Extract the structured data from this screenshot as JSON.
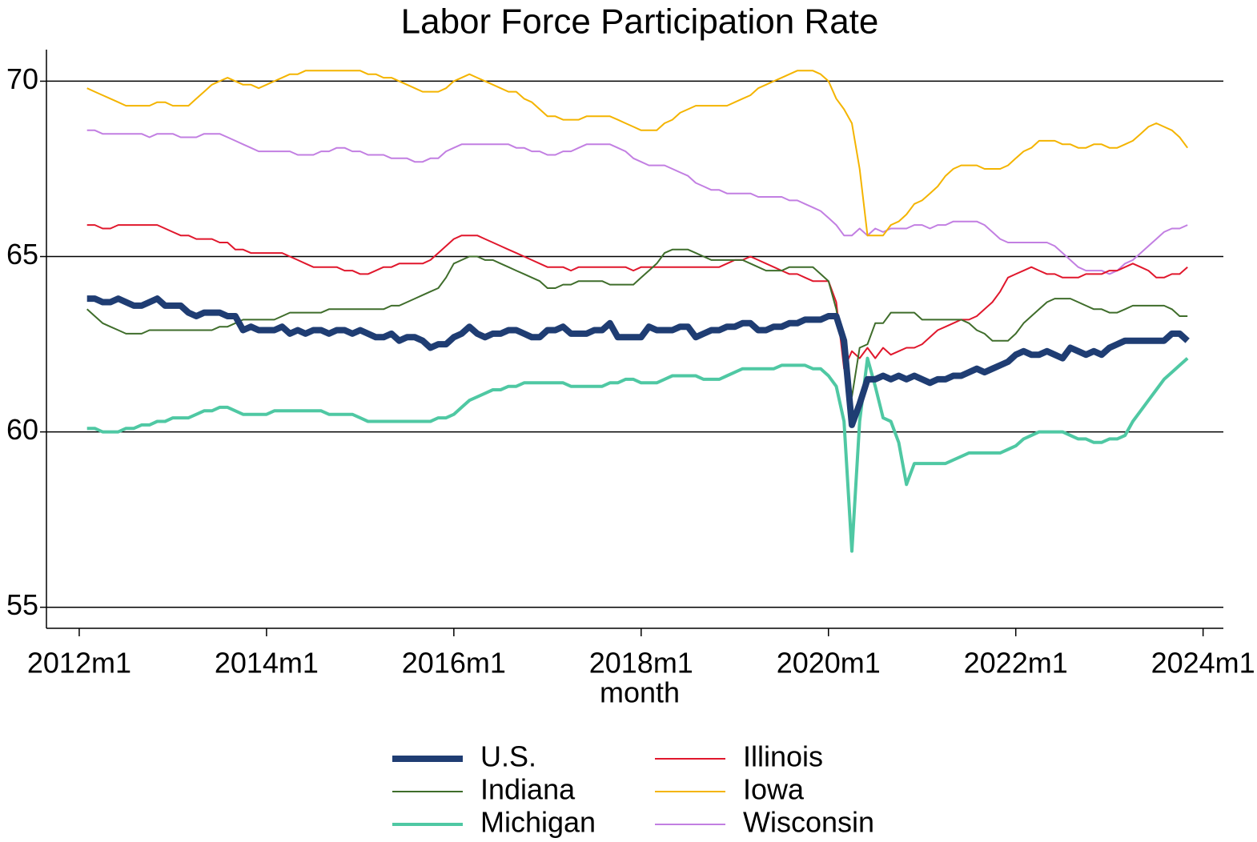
{
  "chart_data": {
    "type": "line",
    "title": "Labor Force Participation Rate",
    "x_label": "month",
    "x": [
      625,
      626,
      627,
      628,
      629,
      630,
      631,
      632,
      633,
      634,
      635,
      636,
      637,
      638,
      639,
      640,
      641,
      642,
      643,
      644,
      645,
      646,
      647,
      648,
      649,
      650,
      651,
      652,
      653,
      654,
      655,
      656,
      657,
      658,
      659,
      660,
      661,
      662,
      663,
      664,
      665,
      666,
      667,
      668,
      669,
      670,
      671,
      672,
      673,
      674,
      675,
      676,
      677,
      678,
      679,
      680,
      681,
      682,
      683,
      684,
      685,
      686,
      687,
      688,
      689,
      690,
      691,
      692,
      693,
      694,
      695,
      696,
      697,
      698,
      699,
      700,
      701,
      702,
      703,
      704,
      705,
      706,
      707,
      708,
      709,
      710,
      711,
      712,
      713,
      714,
      715,
      716,
      717,
      718,
      719,
      720,
      721,
      722,
      723,
      724,
      725,
      726,
      727,
      728,
      729,
      730,
      731,
      732,
      733,
      734,
      735,
      736,
      737,
      738,
      739,
      740,
      741,
      742,
      743,
      744,
      745,
      746,
      747,
      748,
      749,
      750,
      751,
      752,
      753,
      754,
      755,
      756,
      757,
      758,
      759,
      760,
      761,
      762,
      763,
      764,
      765,
      766
    ],
    "xlim": [
      619.8,
      770.6
    ],
    "xticks": [
      {
        "value": 624,
        "label": "2012m1"
      },
      {
        "value": 648,
        "label": "2014m1"
      },
      {
        "value": 672,
        "label": "2016m1"
      },
      {
        "value": 696,
        "label": "2018m1"
      },
      {
        "value": 720,
        "label": "2020m1"
      },
      {
        "value": 744,
        "label": "2022m1"
      },
      {
        "value": 768,
        "label": "2024m1"
      }
    ],
    "ylim": [
      54.4,
      70.9
    ],
    "yticks": [
      55,
      60,
      65,
      70
    ],
    "grid": true,
    "series": [
      {
        "name": "U.S.",
        "color": "#1f3d73",
        "values": [
          63.8,
          63.8,
          63.7,
          63.7,
          63.8,
          63.7,
          63.6,
          63.6,
          63.7,
          63.8,
          63.6,
          63.6,
          63.6,
          63.4,
          63.3,
          63.4,
          63.4,
          63.4,
          63.3,
          63.3,
          62.9,
          63.0,
          62.9,
          62.9,
          62.9,
          63.0,
          62.8,
          62.9,
          62.8,
          62.9,
          62.9,
          62.8,
          62.9,
          62.9,
          62.8,
          62.9,
          62.8,
          62.7,
          62.7,
          62.8,
          62.6,
          62.7,
          62.7,
          62.6,
          62.4,
          62.5,
          62.5,
          62.7,
          62.8,
          63.0,
          62.8,
          62.7,
          62.8,
          62.8,
          62.9,
          62.9,
          62.8,
          62.7,
          62.7,
          62.9,
          62.9,
          63.0,
          62.8,
          62.8,
          62.8,
          62.9,
          62.9,
          63.1,
          62.7,
          62.7,
          62.7,
          62.7,
          63.0,
          62.9,
          62.9,
          62.9,
          63.0,
          63.0,
          62.7,
          62.8,
          62.9,
          62.9,
          63.0,
          63.0,
          63.1,
          63.1,
          62.9,
          62.9,
          63.0,
          63.0,
          63.1,
          63.1,
          63.2,
          63.2,
          63.2,
          63.3,
          63.3,
          62.6,
          60.2,
          60.8,
          61.5,
          61.5,
          61.6,
          61.5,
          61.6,
          61.5,
          61.6,
          61.5,
          61.4,
          61.5,
          61.5,
          61.6,
          61.6,
          61.7,
          61.8,
          61.7,
          61.8,
          61.9,
          62.0,
          62.2,
          62.3,
          62.2,
          62.2,
          62.3,
          62.2,
          62.1,
          62.4,
          62.3,
          62.2,
          62.3,
          62.2,
          62.4,
          62.5,
          62.6,
          62.6,
          62.6,
          62.6,
          62.6,
          62.6,
          62.8,
          62.8,
          62.6
        ]
      },
      {
        "name": "Indiana",
        "color": "#3f6d2b",
        "values": [
          63.5,
          63.3,
          63.1,
          63.0,
          62.9,
          62.8,
          62.8,
          62.8,
          62.9,
          62.9,
          62.9,
          62.9,
          62.9,
          62.9,
          62.9,
          62.9,
          62.9,
          63.0,
          63.0,
          63.1,
          63.2,
          63.2,
          63.2,
          63.2,
          63.2,
          63.3,
          63.4,
          63.4,
          63.4,
          63.4,
          63.4,
          63.5,
          63.5,
          63.5,
          63.5,
          63.5,
          63.5,
          63.5,
          63.5,
          63.6,
          63.6,
          63.7,
          63.8,
          63.9,
          64.0,
          64.1,
          64.4,
          64.8,
          64.9,
          65.0,
          65.0,
          64.9,
          64.9,
          64.8,
          64.7,
          64.6,
          64.5,
          64.4,
          64.3,
          64.1,
          64.1,
          64.2,
          64.2,
          64.3,
          64.3,
          64.3,
          64.3,
          64.2,
          64.2,
          64.2,
          64.2,
          64.4,
          64.6,
          64.8,
          65.1,
          65.2,
          65.2,
          65.2,
          65.1,
          65.0,
          64.9,
          64.9,
          64.9,
          64.9,
          64.9,
          64.8,
          64.7,
          64.6,
          64.6,
          64.6,
          64.7,
          64.7,
          64.7,
          64.7,
          64.5,
          64.3,
          63.5,
          62.2,
          61.0,
          62.4,
          62.5,
          63.1,
          63.1,
          63.4,
          63.4,
          63.4,
          63.4,
          63.2,
          63.2,
          63.2,
          63.2,
          63.2,
          63.2,
          63.1,
          62.9,
          62.8,
          62.6,
          62.6,
          62.6,
          62.8,
          63.1,
          63.3,
          63.5,
          63.7,
          63.8,
          63.8,
          63.8,
          63.7,
          63.6,
          63.5,
          63.5,
          63.4,
          63.4,
          63.5,
          63.6,
          63.6,
          63.6,
          63.6,
          63.6,
          63.5,
          63.3,
          63.3
        ]
      },
      {
        "name": "Michigan",
        "color": "#4fc8a3",
        "values": [
          60.1,
          60.1,
          60.0,
          60.0,
          60.0,
          60.1,
          60.1,
          60.2,
          60.2,
          60.3,
          60.3,
          60.4,
          60.4,
          60.4,
          60.5,
          60.6,
          60.6,
          60.7,
          60.7,
          60.6,
          60.5,
          60.5,
          60.5,
          60.5,
          60.6,
          60.6,
          60.6,
          60.6,
          60.6,
          60.6,
          60.6,
          60.5,
          60.5,
          60.5,
          60.5,
          60.4,
          60.3,
          60.3,
          60.3,
          60.3,
          60.3,
          60.3,
          60.3,
          60.3,
          60.3,
          60.4,
          60.4,
          60.5,
          60.7,
          60.9,
          61.0,
          61.1,
          61.2,
          61.2,
          61.3,
          61.3,
          61.4,
          61.4,
          61.4,
          61.4,
          61.4,
          61.4,
          61.3,
          61.3,
          61.3,
          61.3,
          61.3,
          61.4,
          61.4,
          61.5,
          61.5,
          61.4,
          61.4,
          61.4,
          61.5,
          61.6,
          61.6,
          61.6,
          61.6,
          61.5,
          61.5,
          61.5,
          61.6,
          61.7,
          61.8,
          61.8,
          61.8,
          61.8,
          61.8,
          61.9,
          61.9,
          61.9,
          61.9,
          61.8,
          61.8,
          61.6,
          61.3,
          60.3,
          56.6,
          60.3,
          62.1,
          61.3,
          60.4,
          60.3,
          59.7,
          58.5,
          59.1,
          59.1,
          59.1,
          59.1,
          59.1,
          59.2,
          59.3,
          59.4,
          59.4,
          59.4,
          59.4,
          59.4,
          59.5,
          59.6,
          59.8,
          59.9,
          60.0,
          60.0,
          60.0,
          60.0,
          59.9,
          59.8,
          59.8,
          59.7,
          59.7,
          59.8,
          59.8,
          59.9,
          60.3,
          60.6,
          60.9,
          61.2,
          61.5,
          61.7,
          61.9,
          62.1
        ]
      },
      {
        "name": "Illinois",
        "color": "#e0172c",
        "values": [
          65.9,
          65.9,
          65.8,
          65.8,
          65.9,
          65.9,
          65.9,
          65.9,
          65.9,
          65.9,
          65.8,
          65.7,
          65.6,
          65.6,
          65.5,
          65.5,
          65.5,
          65.4,
          65.4,
          65.2,
          65.2,
          65.1,
          65.1,
          65.1,
          65.1,
          65.1,
          65.0,
          64.9,
          64.8,
          64.7,
          64.7,
          64.7,
          64.7,
          64.6,
          64.6,
          64.5,
          64.5,
          64.6,
          64.7,
          64.7,
          64.8,
          64.8,
          64.8,
          64.8,
          64.9,
          65.1,
          65.3,
          65.5,
          65.6,
          65.6,
          65.6,
          65.5,
          65.4,
          65.3,
          65.2,
          65.1,
          65.0,
          64.9,
          64.8,
          64.7,
          64.7,
          64.7,
          64.6,
          64.7,
          64.7,
          64.7,
          64.7,
          64.7,
          64.7,
          64.7,
          64.6,
          64.7,
          64.7,
          64.7,
          64.7,
          64.7,
          64.7,
          64.7,
          64.7,
          64.7,
          64.7,
          64.7,
          64.8,
          64.9,
          64.9,
          65.0,
          64.9,
          64.8,
          64.7,
          64.6,
          64.5,
          64.5,
          64.4,
          64.3,
          64.3,
          64.3,
          63.7,
          61.8,
          62.3,
          62.1,
          62.4,
          62.1,
          62.4,
          62.2,
          62.3,
          62.4,
          62.4,
          62.5,
          62.7,
          62.9,
          63.0,
          63.1,
          63.2,
          63.2,
          63.3,
          63.5,
          63.7,
          64.0,
          64.4,
          64.5,
          64.6,
          64.7,
          64.6,
          64.5,
          64.5,
          64.4,
          64.4,
          64.4,
          64.5,
          64.5,
          64.5,
          64.6,
          64.6,
          64.7,
          64.8,
          64.7,
          64.6,
          64.4,
          64.4,
          64.5,
          64.5,
          64.7
        ]
      },
      {
        "name": "Iowa",
        "color": "#f4b400",
        "values": [
          69.8,
          69.7,
          69.6,
          69.5,
          69.4,
          69.3,
          69.3,
          69.3,
          69.3,
          69.4,
          69.4,
          69.3,
          69.3,
          69.3,
          69.5,
          69.7,
          69.9,
          70.0,
          70.1,
          70.0,
          69.9,
          69.9,
          69.8,
          69.9,
          70.0,
          70.1,
          70.2,
          70.2,
          70.3,
          70.3,
          70.3,
          70.3,
          70.3,
          70.3,
          70.3,
          70.3,
          70.2,
          70.2,
          70.1,
          70.1,
          70.0,
          69.9,
          69.8,
          69.7,
          69.7,
          69.7,
          69.8,
          70.0,
          70.1,
          70.2,
          70.1,
          70.0,
          69.9,
          69.8,
          69.7,
          69.7,
          69.5,
          69.4,
          69.2,
          69.0,
          69.0,
          68.9,
          68.9,
          68.9,
          69.0,
          69.0,
          69.0,
          69.0,
          68.9,
          68.8,
          68.7,
          68.6,
          68.6,
          68.6,
          68.8,
          68.9,
          69.1,
          69.2,
          69.3,
          69.3,
          69.3,
          69.3,
          69.3,
          69.4,
          69.5,
          69.6,
          69.8,
          69.9,
          70.0,
          70.1,
          70.2,
          70.3,
          70.3,
          70.3,
          70.2,
          70.0,
          69.5,
          69.2,
          68.8,
          67.5,
          65.6,
          65.6,
          65.6,
          65.9,
          66.0,
          66.2,
          66.5,
          66.6,
          66.8,
          67.0,
          67.3,
          67.5,
          67.6,
          67.6,
          67.6,
          67.5,
          67.5,
          67.5,
          67.6,
          67.8,
          68.0,
          68.1,
          68.3,
          68.3,
          68.3,
          68.2,
          68.2,
          68.1,
          68.1,
          68.2,
          68.2,
          68.1,
          68.1,
          68.2,
          68.3,
          68.5,
          68.7,
          68.8,
          68.7,
          68.6,
          68.4,
          68.1
        ]
      },
      {
        "name": "Wisconsin",
        "color": "#c27fe2",
        "values": [
          68.6,
          68.6,
          68.5,
          68.5,
          68.5,
          68.5,
          68.5,
          68.5,
          68.4,
          68.5,
          68.5,
          68.5,
          68.4,
          68.4,
          68.4,
          68.5,
          68.5,
          68.5,
          68.4,
          68.3,
          68.2,
          68.1,
          68.0,
          68.0,
          68.0,
          68.0,
          68.0,
          67.9,
          67.9,
          67.9,
          68.0,
          68.0,
          68.1,
          68.1,
          68.0,
          68.0,
          67.9,
          67.9,
          67.9,
          67.8,
          67.8,
          67.8,
          67.7,
          67.7,
          67.8,
          67.8,
          68.0,
          68.1,
          68.2,
          68.2,
          68.2,
          68.2,
          68.2,
          68.2,
          68.2,
          68.1,
          68.1,
          68.0,
          68.0,
          67.9,
          67.9,
          68.0,
          68.0,
          68.1,
          68.2,
          68.2,
          68.2,
          68.2,
          68.1,
          68.0,
          67.8,
          67.7,
          67.6,
          67.6,
          67.6,
          67.5,
          67.4,
          67.3,
          67.1,
          67.0,
          66.9,
          66.9,
          66.8,
          66.8,
          66.8,
          66.8,
          66.7,
          66.7,
          66.7,
          66.7,
          66.6,
          66.6,
          66.5,
          66.4,
          66.3,
          66.1,
          65.9,
          65.6,
          65.6,
          65.8,
          65.6,
          65.8,
          65.7,
          65.8,
          65.8,
          65.8,
          65.9,
          65.9,
          65.8,
          65.9,
          65.9,
          66.0,
          66.0,
          66.0,
          66.0,
          65.9,
          65.7,
          65.5,
          65.4,
          65.4,
          65.4,
          65.4,
          65.4,
          65.4,
          65.3,
          65.1,
          64.9,
          64.7,
          64.6,
          64.6,
          64.6,
          64.5,
          64.6,
          64.8,
          64.9,
          65.1,
          65.3,
          65.5,
          65.7,
          65.8,
          65.8,
          65.9
        ]
      }
    ]
  }
}
